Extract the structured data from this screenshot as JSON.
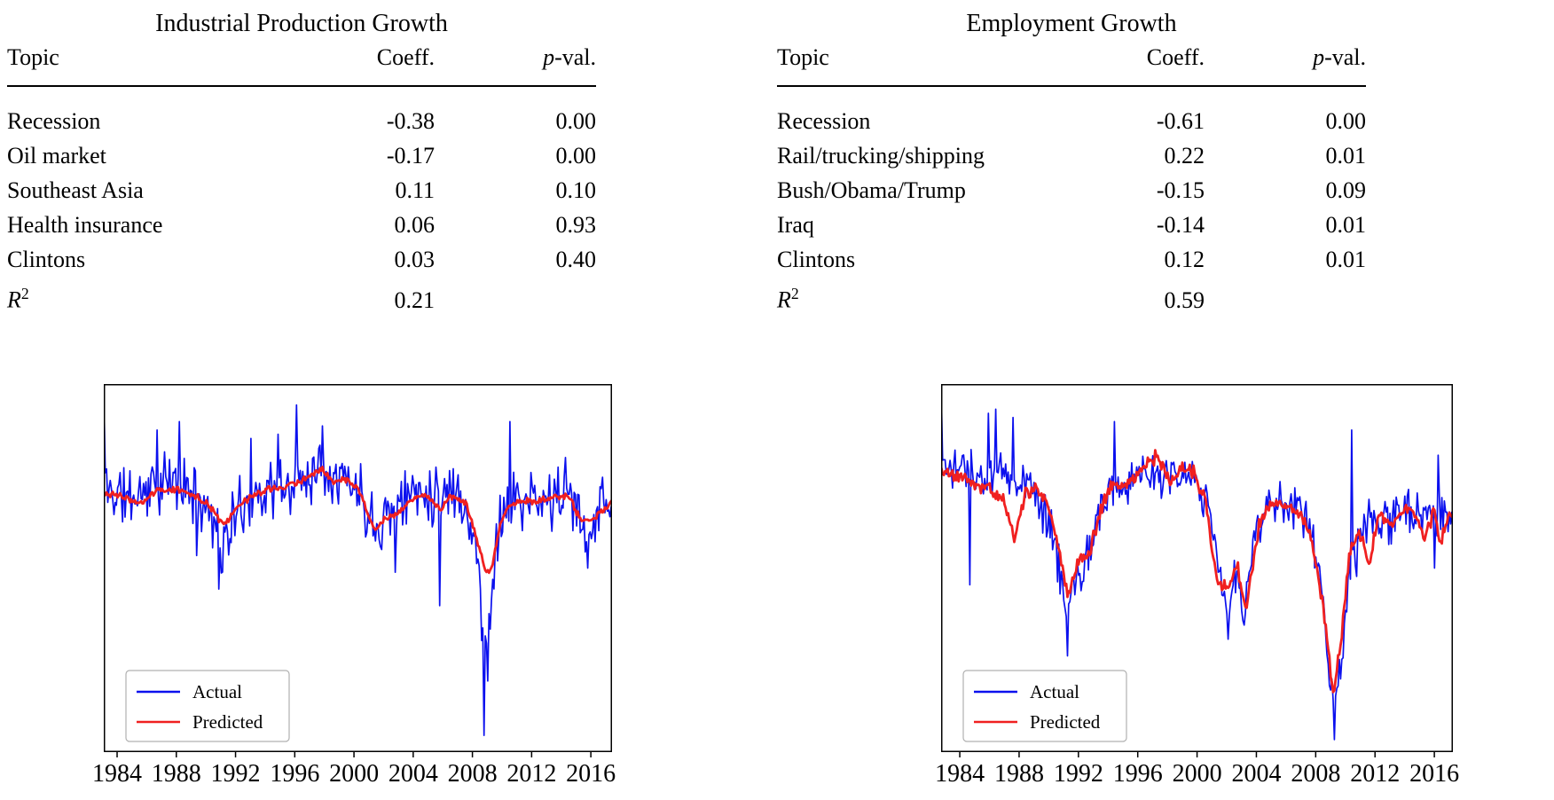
{
  "panels": [
    {
      "title": "Industrial Production Growth",
      "table": {
        "headers": {
          "topic": "Topic",
          "coeff": "Coeff.",
          "pval_italic": "p",
          "pval_rest": "-val."
        },
        "rows": [
          {
            "topic": "Recession",
            "coeff": "-0.38",
            "pval": "0.00"
          },
          {
            "topic": "Oil market",
            "coeff": "-0.17",
            "pval": "0.00"
          },
          {
            "topic": "Southeast Asia",
            "coeff": "0.11",
            "pval": "0.10"
          },
          {
            "topic": "Health insurance",
            "coeff": "0.06",
            "pval": "0.93"
          },
          {
            "topic": "Clintons",
            "coeff": "0.03",
            "pval": "0.40"
          }
        ],
        "r2": {
          "base": "R",
          "sup": "2",
          "value": "0.21"
        }
      }
    },
    {
      "title": "Employment Growth",
      "table": {
        "headers": {
          "topic": "Topic",
          "coeff": "Coeff.",
          "pval_italic": "p",
          "pval_rest": "-val."
        },
        "rows": [
          {
            "topic": "Recession",
            "coeff": "-0.61",
            "pval": "0.00"
          },
          {
            "topic": "Rail/trucking/shipping",
            "coeff": "0.22",
            "pval": "0.01"
          },
          {
            "topic": "Bush/Obama/Trump",
            "coeff": "-0.15",
            "pval": "0.09"
          },
          {
            "topic": "Iraq",
            "coeff": "-0.14",
            "pval": "0.01"
          },
          {
            "topic": "Clintons",
            "coeff": "0.12",
            "pval": "0.01"
          }
        ],
        "r2": {
          "base": "R",
          "sup": "2",
          "value": "0.59"
        }
      }
    }
  ],
  "chart_data": [
    {
      "type": "line",
      "title": "Industrial Production Growth (actual vs predicted)",
      "xlabel": "",
      "ylabel": "",
      "x_ticks": [
        1984,
        1988,
        1992,
        1996,
        2000,
        2004,
        2008,
        2012,
        2016
      ],
      "xlim": [
        1983.1,
        2017.43
      ],
      "ylim": [
        -3.1,
        1.3
      ],
      "grid": false,
      "legend": {
        "position": "lower left",
        "entries": [
          {
            "label": "Actual",
            "color": "#0b10ee"
          },
          {
            "label": "Predicted",
            "color": "#f02020"
          }
        ]
      },
      "series": [
        {
          "name": "Actual",
          "color": "#0b10ee",
          "width": 1.7,
          "noise": 0.46,
          "seed": 11,
          "trend": [
            [
              1983.1,
              0.2
            ],
            [
              1983.5,
              0.0
            ],
            [
              1985,
              -0.05
            ],
            [
              1986.5,
              0.1
            ],
            [
              1988,
              0.1
            ],
            [
              1989.5,
              0.0
            ],
            [
              1990.6,
              -0.3
            ],
            [
              1991.1,
              -0.7
            ],
            [
              1991.7,
              -0.4
            ],
            [
              1992.5,
              -0.15
            ],
            [
              1994,
              0.05
            ],
            [
              1995.5,
              0.05
            ],
            [
              1996.5,
              0.2
            ],
            [
              1997.5,
              0.3
            ],
            [
              1998.6,
              0.3
            ],
            [
              1999.5,
              0.15
            ],
            [
              2000.5,
              0.0
            ],
            [
              2001.3,
              -0.35
            ],
            [
              2002.2,
              -0.25
            ],
            [
              2003,
              -0.2
            ],
            [
              2004,
              0.05
            ],
            [
              2006,
              0.0
            ],
            [
              2007,
              0.05
            ],
            [
              2007.8,
              -0.3
            ],
            [
              2008.4,
              -0.9
            ],
            [
              2008.8,
              -1.9
            ],
            [
              2009.1,
              -1.55
            ],
            [
              2009.4,
              -0.9
            ],
            [
              2009.8,
              -0.35
            ],
            [
              2010.5,
              -0.1
            ],
            [
              2011.5,
              -0.1
            ],
            [
              2012.5,
              -0.15
            ],
            [
              2013.5,
              -0.05
            ],
            [
              2014.5,
              0.0
            ],
            [
              2015.3,
              -0.3
            ],
            [
              2015.9,
              -0.35
            ],
            [
              2016.5,
              -0.2
            ],
            [
              2017.4,
              -0.05
            ]
          ],
          "points": [
            [
              1983.13,
              1.05
            ],
            [
              1986.7,
              0.75
            ],
            [
              1988.2,
              0.85
            ],
            [
              1989.4,
              -0.75
            ],
            [
              1990.9,
              -1.15
            ],
            [
              1993.0,
              0.65
            ],
            [
              1994.9,
              0.7
            ],
            [
              1996.1,
              1.05
            ],
            [
              1997.9,
              0.8
            ],
            [
              2002.8,
              -0.95
            ],
            [
              2005.75,
              -1.35
            ],
            [
              2008.75,
              -2.9
            ],
            [
              2009.05,
              -2.25
            ],
            [
              2010.5,
              0.85
            ],
            [
              2015.8,
              -0.9
            ]
          ]
        },
        {
          "name": "Predicted",
          "color": "#f02020",
          "width": 2.8,
          "noise": 0.05,
          "seed": 3,
          "trend": [
            [
              1983.1,
              0.0
            ],
            [
              1984.5,
              -0.05
            ],
            [
              1985.5,
              -0.15
            ],
            [
              1986.5,
              0.0
            ],
            [
              1988,
              0.05
            ],
            [
              1989.5,
              -0.05
            ],
            [
              1990.5,
              -0.2
            ],
            [
              1991.2,
              -0.4
            ],
            [
              1992,
              -0.2
            ],
            [
              1993,
              -0.05
            ],
            [
              1994.5,
              0.05
            ],
            [
              1996,
              0.1
            ],
            [
              1997,
              0.2
            ],
            [
              1997.8,
              0.3
            ],
            [
              1998.6,
              0.15
            ],
            [
              1999.5,
              0.15
            ],
            [
              2000.3,
              0.05
            ],
            [
              2001.4,
              -0.45
            ],
            [
              2002.2,
              -0.3
            ],
            [
              2003,
              -0.25
            ],
            [
              2004,
              -0.05
            ],
            [
              2005,
              -0.05
            ],
            [
              2005.9,
              -0.2
            ],
            [
              2006.5,
              -0.05
            ],
            [
              2007.5,
              -0.1
            ],
            [
              2008.3,
              -0.55
            ],
            [
              2008.9,
              -0.95
            ],
            [
              2009.3,
              -0.9
            ],
            [
              2009.9,
              -0.35
            ],
            [
              2010.5,
              -0.15
            ],
            [
              2011.5,
              -0.1
            ],
            [
              2012.5,
              -0.1
            ],
            [
              2013.5,
              -0.05
            ],
            [
              2014.5,
              -0.05
            ],
            [
              2015.4,
              -0.35
            ],
            [
              2016.2,
              -0.3
            ],
            [
              2017.4,
              -0.1
            ]
          ],
          "points": []
        }
      ]
    },
    {
      "type": "line",
      "title": "Employment Growth (actual vs predicted)",
      "xlabel": "",
      "ylabel": "",
      "x_ticks": [
        1984,
        1988,
        1992,
        1996,
        2000,
        2004,
        2008,
        2012,
        2016
      ],
      "xlim": [
        1982.74,
        2017.25
      ],
      "ylim": [
        -3.1,
        1.3
      ],
      "grid": false,
      "legend": {
        "position": "lower left",
        "entries": [
          {
            "label": "Actual",
            "color": "#0b10ee"
          },
          {
            "label": "Predicted",
            "color": "#f02020"
          }
        ]
      },
      "series": [
        {
          "name": "Actual",
          "color": "#0b10ee",
          "width": 1.7,
          "noise": 0.34,
          "seed": 8,
          "trend": [
            [
              1982.75,
              0.4
            ],
            [
              1983.3,
              0.35
            ],
            [
              1984.3,
              0.3
            ],
            [
              1985.2,
              0.2
            ],
            [
              1986,
              0.15
            ],
            [
              1986.8,
              0.3
            ],
            [
              1987.5,
              0.2
            ],
            [
              1988.5,
              0.15
            ],
            [
              1989.5,
              -0.1
            ],
            [
              1990.3,
              -0.5
            ],
            [
              1991.2,
              -1.5
            ],
            [
              1991.8,
              -1.05
            ],
            [
              1992.4,
              -0.85
            ],
            [
              1993.2,
              -0.4
            ],
            [
              1994.2,
              0.1
            ],
            [
              1995.5,
              0.1
            ],
            [
              1997,
              0.2
            ],
            [
              1998,
              0.25
            ],
            [
              1999,
              0.2
            ],
            [
              2000,
              0.15
            ],
            [
              2000.7,
              -0.1
            ],
            [
              2001.5,
              -0.95
            ],
            [
              2002,
              -1.35
            ],
            [
              2002.6,
              -1.0
            ],
            [
              2003.2,
              -1.4
            ],
            [
              2004,
              -0.5
            ],
            [
              2004.8,
              -0.15
            ],
            [
              2005.5,
              -0.1
            ],
            [
              2006.5,
              -0.15
            ],
            [
              2007.5,
              -0.35
            ],
            [
              2008.3,
              -1.0
            ],
            [
              2009,
              -2.45
            ],
            [
              2009.4,
              -2.6
            ],
            [
              2009.9,
              -1.7
            ],
            [
              2010.4,
              -0.8
            ],
            [
              2011,
              -0.5
            ],
            [
              2012,
              -0.3
            ],
            [
              2013,
              -0.35
            ],
            [
              2014,
              -0.2
            ],
            [
              2015,
              -0.2
            ],
            [
              2016,
              -0.3
            ],
            [
              2017.3,
              -0.25
            ]
          ],
          "points": [
            [
              1982.8,
              1.15
            ],
            [
              1984.7,
              -1.1
            ],
            [
              1985.9,
              0.95
            ],
            [
              1986.4,
              1.0
            ],
            [
              1987.6,
              0.9
            ],
            [
              1991.3,
              -1.95
            ],
            [
              1994.4,
              0.85
            ],
            [
              2002.1,
              -1.75
            ],
            [
              2009.3,
              -2.95
            ],
            [
              2010.4,
              0.75
            ],
            [
              2010.8,
              -1.0
            ],
            [
              2016.0,
              -0.9
            ],
            [
              2016.3,
              0.45
            ]
          ]
        },
        {
          "name": "Predicted",
          "color": "#f02020",
          "width": 2.8,
          "noise": 0.1,
          "seed": 5,
          "trend": [
            [
              1982.75,
              0.25
            ],
            [
              1984,
              0.2
            ],
            [
              1985,
              0.1
            ],
            [
              1986,
              0.05
            ],
            [
              1987,
              -0.1
            ],
            [
              1987.7,
              -0.55
            ],
            [
              1988.4,
              0.0
            ],
            [
              1989.2,
              0.05
            ],
            [
              1990,
              -0.15
            ],
            [
              1990.8,
              -0.75
            ],
            [
              1991.3,
              -1.25
            ],
            [
              1992,
              -0.8
            ],
            [
              1992.7,
              -0.75
            ],
            [
              1993.5,
              -0.2
            ],
            [
              1994.3,
              0.1
            ],
            [
              1995.3,
              0.1
            ],
            [
              1996.3,
              0.3
            ],
            [
              1997.3,
              0.45
            ],
            [
              1998.2,
              0.1
            ],
            [
              1999,
              0.3
            ],
            [
              1999.8,
              0.25
            ],
            [
              2000.5,
              -0.05
            ],
            [
              2001.4,
              -1.1
            ],
            [
              2002.1,
              -1.15
            ],
            [
              2002.7,
              -0.85
            ],
            [
              2003.3,
              -1.45
            ],
            [
              2004.2,
              -0.35
            ],
            [
              2005,
              -0.1
            ],
            [
              2006,
              -0.15
            ],
            [
              2007,
              -0.25
            ],
            [
              2007.8,
              -0.6
            ],
            [
              2008.6,
              -1.5
            ],
            [
              2009.2,
              -2.4
            ],
            [
              2009.8,
              -1.6
            ],
            [
              2010.3,
              -0.7
            ],
            [
              2010.9,
              -0.45
            ],
            [
              2011.6,
              -0.85
            ],
            [
              2012.3,
              -0.25
            ],
            [
              2013,
              -0.4
            ],
            [
              2013.8,
              -0.25
            ],
            [
              2014.5,
              -0.15
            ],
            [
              2015.3,
              -0.5
            ],
            [
              2016,
              -0.25
            ],
            [
              2016.4,
              -0.6
            ],
            [
              2016.9,
              -0.3
            ],
            [
              2017.3,
              -0.3
            ]
          ],
          "points": []
        }
      ]
    }
  ]
}
